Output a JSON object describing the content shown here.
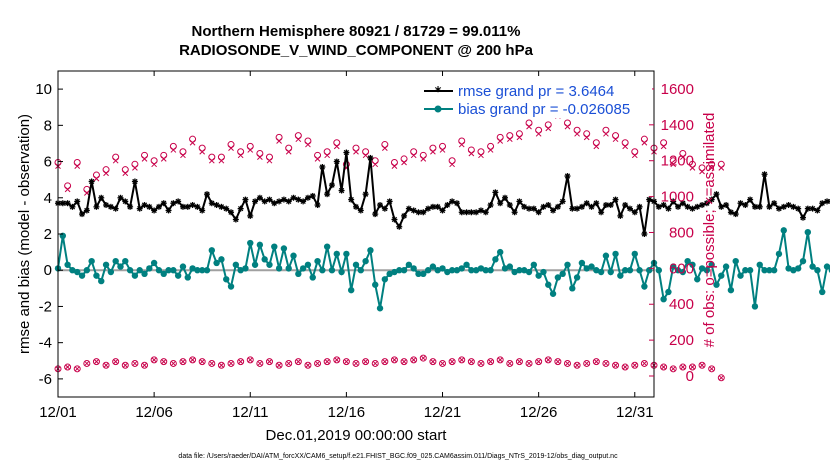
{
  "chart_data": {
    "type": "line",
    "title_line1": "Northern Hemisphere 80921 / 81729 = 99.011%",
    "title_line2": "RADIOSONDE_V_WIND_COMPONENT @ 200 hPa",
    "xlabel": "Dec.01,2019 00:00:00 start",
    "ylabel_left": "rmse and bias (model - observation)",
    "ylabel_right": "# of obs: o=possible; ×=assimilated",
    "footer": "data file: /Users/raeder/DAI/ATM_forcXX/CAM6_setup/f.e21.FHIST_BGC.f09_025.CAM6assim.011/Diags_NTrS_2019-12/obs_diag_output.nc",
    "x_tick_labels": [
      "12/01",
      "12/06",
      "12/11",
      "12/16",
      "12/21",
      "12/26",
      "12/31"
    ],
    "x_tick_days": [
      1,
      6,
      11,
      16,
      21,
      26,
      31
    ],
    "xlim_days": [
      1,
      32
    ],
    "ylim_left": [
      -7,
      11
    ],
    "y_ticks_left": [
      -6,
      -4,
      -2,
      0,
      2,
      4,
      6,
      8,
      10
    ],
    "ylim_right": [
      -117,
      1700
    ],
    "y_ticks_right": [
      0,
      200,
      400,
      600,
      800,
      1000,
      1200,
      1400,
      1600
    ],
    "colors": {
      "rmse": "#000000",
      "bias": "#008080",
      "obs": "#c8004a",
      "zero_line": "#a0a0a0",
      "legend_text": "#1a4fd6"
    },
    "legend": {
      "position": "top-right",
      "entries": [
        "rmse grand pr = 3.6464",
        "bias grand pr = -0.026085"
      ]
    },
    "series": [
      {
        "name": "rmse",
        "step_days": 0.25,
        "values": [
          3.7,
          3.7,
          3.7,
          3.5,
          3.8,
          3.1,
          3.3,
          4.9,
          3.5,
          4.0,
          3.6,
          3.5,
          3.4,
          4.0,
          3.8,
          3.5,
          4.9,
          3.4,
          3.6,
          3.5,
          3.3,
          3.5,
          3.7,
          3.3,
          3.7,
          3.8,
          3.5,
          3.5,
          3.6,
          3.5,
          3.3,
          4.2,
          3.7,
          3.6,
          3.5,
          3.4,
          3.2,
          2.8,
          3.4,
          3.9,
          3.0,
          3.8,
          4.0,
          3.8,
          3.9,
          3.7,
          3.8,
          3.9,
          3.8,
          4.0,
          3.9,
          3.8,
          4.0,
          4.1,
          3.6,
          5.7,
          4.2,
          4.7,
          6.0,
          4.4,
          6.5,
          3.9,
          3.5,
          3.3,
          4.2,
          6.2,
          3.1,
          3.6,
          3.4,
          3.8,
          2.8,
          2.4,
          3.0,
          3.4,
          3.3,
          3.2,
          3.2,
          3.4,
          3.5,
          3.5,
          3.3,
          3.6,
          3.8,
          3.7,
          3.2,
          3.2,
          3.2,
          3.2,
          3.3,
          3.2,
          3.6,
          4.3,
          3.7,
          4.0,
          3.6,
          3.2,
          3.8,
          3.5,
          3.4,
          3.4,
          3.2,
          3.5,
          3.6,
          3.3,
          3.5,
          3.8,
          5.2,
          3.4,
          3.4,
          3.5,
          3.7,
          3.5,
          3.7,
          3.2,
          3.6,
          3.6,
          3.9,
          3.0,
          3.6,
          3.4,
          3.2,
          3.5,
          2.0,
          3.9,
          3.8,
          3.5,
          3.6,
          3.4,
          3.8,
          3.5,
          3.7,
          3.5,
          3.4,
          3.5,
          3.6,
          3.7,
          3.9,
          4.2,
          3.5,
          3.6,
          3.2,
          3.1,
          3.7,
          3.6,
          3.9,
          3.5,
          3.5,
          5.3,
          3.5,
          3.7,
          3.4,
          3.5,
          3.6,
          3.5,
          3.4,
          2.9,
          3.4,
          3.4,
          3.3,
          3.7,
          3.8,
          3.8
        ]
      },
      {
        "name": "bias",
        "step_days": 0.25,
        "values": [
          0.1,
          1.9,
          0.3,
          0.0,
          -0.1,
          -0.3,
          0.0,
          0.5,
          -0.3,
          -0.6,
          0.3,
          -0.1,
          0.5,
          0.2,
          0.5,
          0.0,
          -0.3,
          0.0,
          -0.2,
          0.1,
          0.4,
          0.0,
          -0.2,
          0.0,
          0.0,
          -0.3,
          0.2,
          -0.4,
          0.1,
          0.0,
          0.0,
          0.0,
          1.1,
          0.4,
          0.6,
          -0.5,
          -0.9,
          0.3,
          0.0,
          0.1,
          1.5,
          0.3,
          1.4,
          0.6,
          0.3,
          1.3,
          0.1,
          1.2,
          0.1,
          0.8,
          -0.2,
          0.1,
          0.3,
          -0.4,
          0.5,
          0.0,
          1.3,
          0.0,
          0.9,
          -0.1,
          0.9,
          -1.1,
          0.3,
          0.0,
          0.5,
          1.1,
          -0.8,
          -2.1,
          -0.5,
          -0.2,
          -0.1,
          0.0,
          0.0,
          0.3,
          0.1,
          -0.2,
          -0.2,
          0.0,
          0.2,
          0.0,
          0.1,
          -0.1,
          0.0,
          0.0,
          0.1,
          0.3,
          0.0,
          0.0,
          0.1,
          0.0,
          0.0,
          0.6,
          1.0,
          0.1,
          0.2,
          -0.1,
          0.0,
          0.0,
          -0.1,
          0.3,
          -0.3,
          -0.1,
          -0.8,
          -1.3,
          -0.4,
          -0.2,
          0.3,
          -1.0,
          -0.4,
          0.4,
          0.1,
          0.2,
          0.0,
          -0.1,
          0.8,
          -0.1,
          0.9,
          -0.3,
          0.0,
          0.0,
          0.9,
          0.0,
          -0.9,
          0.0,
          0.4,
          0.0,
          -1.6,
          -1.2,
          0.2,
          0.0,
          -0.1,
          0.5,
          0.3,
          -0.5,
          0.1,
          0.0,
          0.3,
          -0.8,
          -0.3,
          0.2,
          -1.1,
          0.5,
          -0.3,
          0.0,
          0.0,
          -2.0,
          0.3,
          0.0,
          0.0,
          0.0,
          0.9,
          2.2,
          0.1,
          0.0,
          0.1,
          0.5,
          2.1,
          0.2,
          0.0,
          -1.2,
          0.2,
          0.0,
          0.1,
          0.0,
          0.0,
          -0.1
        ]
      },
      {
        "name": "obs_possible",
        "step_days": 0.5,
        "values": [
          1190,
          1060,
          1190,
          1040,
          1120,
          1150,
          1220,
          1150,
          1180,
          1230,
          1200,
          1230,
          1280,
          1250,
          1320,
          1270,
          1220,
          1220,
          1290,
          1250,
          1280,
          1240,
          1220,
          1330,
          1270,
          1340,
          1310,
          1230,
          1250,
          1300,
          1180,
          1270,
          1250,
          1200,
          1290,
          1190,
          1210,
          1250,
          1230,
          1270,
          1280,
          1200,
          1310,
          1260,
          1250,
          1280,
          1330,
          1340,
          1350,
          1410,
          1370,
          1400,
          1470,
          1410,
          1370,
          1350,
          1300,
          1370,
          1340,
          1300,
          1250,
          1320,
          1270,
          1300,
          1200,
          1240,
          1180,
          1160,
          1180,
          1180
        ]
      },
      {
        "name": "obs_assimilated",
        "step_days": 0.5,
        "values": [
          1170,
          1040,
          1170,
          1020,
          1100,
          1130,
          1200,
          1130,
          1160,
          1210,
          1180,
          1210,
          1260,
          1230,
          1300,
          1250,
          1200,
          1200,
          1270,
          1230,
          1260,
          1220,
          1200,
          1310,
          1250,
          1320,
          1290,
          1210,
          1230,
          1280,
          1160,
          1250,
          1230,
          1180,
          1270,
          1170,
          1190,
          1230,
          1210,
          1250,
          1260,
          1180,
          1290,
          1240,
          1230,
          1260,
          1310,
          1320,
          1330,
          1390,
          1350,
          1380,
          1450,
          1390,
          1350,
          1330,
          1280,
          1350,
          1320,
          1280,
          1230,
          1300,
          1250,
          1280,
          1180,
          1220,
          1160,
          1140,
          1160,
          1160
        ]
      },
      {
        "name": "obs_bottom",
        "step_days": 0.5,
        "values": [
          40,
          50,
          40,
          70,
          80,
          60,
          80,
          60,
          70,
          60,
          90,
          80,
          70,
          80,
          90,
          80,
          70,
          60,
          70,
          80,
          90,
          70,
          80,
          60,
          70,
          80,
          60,
          70,
          80,
          90,
          80,
          70,
          80,
          70,
          80,
          90,
          80,
          90,
          100,
          80,
          70,
          80,
          90,
          80,
          70,
          80,
          90,
          70,
          80,
          70,
          80,
          90,
          80,
          70,
          60,
          70,
          80,
          70,
          60,
          50,
          60,
          70,
          60,
          50,
          40,
          50,
          50,
          60,
          40,
          -10
        ]
      }
    ]
  }
}
